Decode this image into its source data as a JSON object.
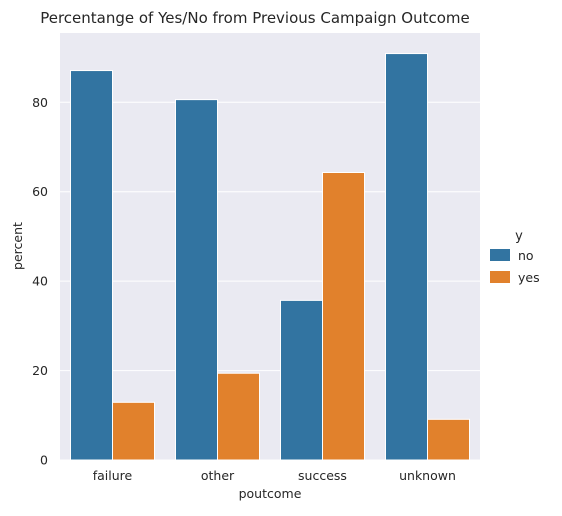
{
  "chart_data": {
    "type": "bar",
    "title": "Percentange of Yes/No from Previous Campaign Outcome",
    "xlabel": "poutcome",
    "ylabel": "percent",
    "categories": [
      "failure",
      "other",
      "success",
      "unknown"
    ],
    "series": [
      {
        "name": "no",
        "values": [
          87.1,
          80.6,
          35.7,
          90.9
        ],
        "color": "#3274a1"
      },
      {
        "name": "yes",
        "values": [
          12.9,
          19.4,
          64.3,
          9.1
        ],
        "color": "#e1812c"
      }
    ],
    "ylim": [
      0,
      95.5
    ],
    "yticks": [
      0,
      20,
      40,
      60,
      80
    ],
    "grid": true,
    "legend": {
      "title": "y",
      "position": "right"
    },
    "background": "#eaeaf2"
  }
}
